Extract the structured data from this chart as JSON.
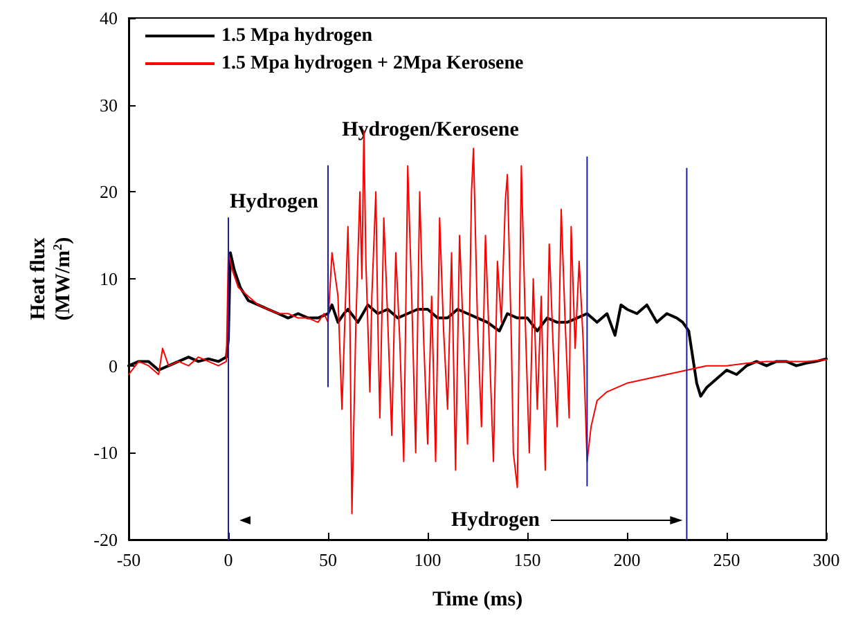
{
  "chart_data": {
    "type": "line",
    "xlabel": "Time (ms)",
    "ylabel": "Heat flux\n(MW/m$^{2}$)",
    "xlim": [
      -50,
      300
    ],
    "xticks": [
      -50,
      0,
      50,
      100,
      150,
      200,
      250,
      300
    ],
    "ylim": [
      -20,
      40
    ],
    "yticks": [
      -20,
      -10,
      0,
      10,
      20,
      30,
      40
    ],
    "grid": false,
    "legend": "top left",
    "marker": "none",
    "line_style": "solid",
    "annotations": [
      "Hydrogen",
      "Hydrogen/Kerosene",
      "Hydrogen"
    ],
    "series": [
      {
        "name": "1.5 Mpa hydrogen",
        "color": "#000000",
        "x": [
          -50,
          -45,
          -40,
          -35,
          -30,
          -25,
          -20,
          -15,
          -10,
          -5,
          -1,
          0,
          1,
          3,
          6,
          10,
          15,
          20,
          25,
          30,
          35,
          40,
          45,
          50,
          52,
          55,
          58,
          60,
          65,
          70,
          75,
          80,
          85,
          90,
          95,
          100,
          105,
          110,
          115,
          120,
          125,
          130,
          136,
          140,
          145,
          150,
          155,
          160,
          165,
          170,
          175,
          180,
          185,
          190,
          194,
          197,
          200,
          205,
          210,
          215,
          220,
          225,
          228,
          231,
          233,
          235,
          237,
          240,
          245,
          250,
          255,
          260,
          265,
          270,
          275,
          280,
          285,
          290,
          295,
          300
        ],
        "values": [
          0,
          0.5,
          0.5,
          -0.5,
          0,
          0.5,
          1,
          0.5,
          0.8,
          0.5,
          1,
          3,
          13,
          11,
          9,
          7.5,
          7,
          6.5,
          6,
          5.5,
          6,
          5.5,
          5.5,
          6,
          7,
          5,
          6,
          6.5,
          5,
          7,
          6,
          6.5,
          5.5,
          6,
          6.5,
          6.5,
          5.5,
          5.5,
          6.5,
          6,
          5.5,
          5,
          4,
          6,
          5.5,
          5.5,
          4,
          5.5,
          5,
          5,
          5.5,
          6,
          5,
          6,
          3.5,
          7,
          6.5,
          6,
          7,
          5,
          6,
          5.5,
          5,
          4,
          1,
          -2,
          -3.5,
          -2.5,
          -1.5,
          -0.5,
          -1,
          0,
          0.5,
          0,
          0.5,
          0.5,
          0,
          0.3,
          0.5,
          0.8
        ]
      },
      {
        "name": "1.5 Mpa hydrogen + 2Mpa Kerosene",
        "color": "#ff0000",
        "x": [
          -50,
          -45,
          -40,
          -35,
          -33,
          -30,
          -25,
          -20,
          -15,
          -10,
          -5,
          -1,
          0,
          2,
          5,
          10,
          15,
          20,
          25,
          30,
          35,
          40,
          45,
          48,
          50,
          52,
          55,
          57,
          60,
          61,
          62,
          64,
          66,
          67,
          68,
          69,
          71,
          72,
          74,
          75,
          76,
          78,
          80,
          82,
          84,
          86,
          88,
          90,
          92,
          94,
          96,
          98,
          100,
          102,
          104,
          106,
          108,
          110,
          112,
          114,
          116,
          118,
          120,
          122,
          123,
          125,
          127,
          129,
          131,
          133,
          135,
          137,
          139,
          140,
          142,
          143,
          145,
          147,
          149,
          151,
          153,
          155,
          157,
          159,
          161,
          163,
          165,
          167,
          169,
          171,
          172,
          174,
          176,
          178,
          180,
          182,
          185,
          190,
          200,
          210,
          220,
          230,
          240,
          250,
          260,
          270,
          280,
          290,
          300
        ],
        "values": [
          -1,
          0.5,
          0,
          -1,
          2,
          0,
          0.5,
          0,
          1,
          0.5,
          0,
          0.5,
          13,
          11,
          9,
          8,
          7,
          6.5,
          6,
          6,
          5.5,
          5.5,
          5,
          6,
          5,
          13,
          8,
          -5,
          16,
          5,
          -17,
          5,
          20,
          10,
          27,
          12,
          -3,
          8,
          20,
          5,
          -6,
          17,
          5,
          -8,
          13,
          3,
          -11,
          23,
          8,
          -10,
          20,
          3,
          -9,
          8,
          -11,
          17,
          4,
          -5,
          13,
          -12,
          15,
          3,
          -9,
          20,
          25,
          5,
          -7,
          15,
          2,
          -11,
          12,
          5,
          19,
          22,
          3,
          -10,
          -14,
          23,
          5,
          -10,
          10,
          -5,
          8,
          -12,
          14,
          2,
          -7,
          18,
          5,
          -6,
          16,
          2,
          12,
          3,
          -11,
          -7,
          -4,
          -3,
          -2,
          -1.5,
          -1,
          -0.5,
          0,
          0,
          0.3,
          0.5,
          0.5,
          0.5,
          0.7
        ]
      },
      {
        "color": "#1c1ca8",
        "x": [
          0,
          0
        ],
        "values": [
          -20,
          17
        ]
      },
      {
        "color": "#1c1ca8",
        "x": [
          50,
          50
        ],
        "values": [
          -2.4,
          23
        ]
      },
      {
        "color": "#1c1ca8",
        "x": [
          180,
          180
        ],
        "values": [
          -13.8,
          24
        ]
      },
      {
        "color": "#1c1ca8",
        "x": [
          230,
          230
        ],
        "values": [
          -20,
          22.7
        ]
      }
    ]
  }
}
